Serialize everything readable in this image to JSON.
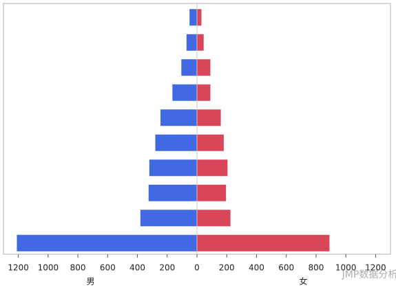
{
  "chart_data": {
    "type": "bar",
    "orientation": "horizontal",
    "series": [
      {
        "name": "男",
        "color": "#4169e1",
        "values": [
          -50,
          -70,
          -105,
          -165,
          -245,
          -280,
          -320,
          -325,
          -380,
          -1210
        ]
      },
      {
        "name": "女",
        "color": "#d9465a",
        "values": [
          30,
          45,
          90,
          90,
          160,
          180,
          205,
          195,
          225,
          890
        ]
      }
    ],
    "xlim": [
      -1300,
      1300
    ],
    "xticks": [
      {
        "value": -1200,
        "label": "1200"
      },
      {
        "value": -1000,
        "label": "1000"
      },
      {
        "value": -800,
        "label": "800"
      },
      {
        "value": -600,
        "label": "600"
      },
      {
        "value": -400,
        "label": "400"
      },
      {
        "value": -200,
        "label": "200"
      },
      0,
      200,
      400,
      600,
      800,
      1000,
      1200
    ],
    "watermark": "JMP数据分析"
  }
}
